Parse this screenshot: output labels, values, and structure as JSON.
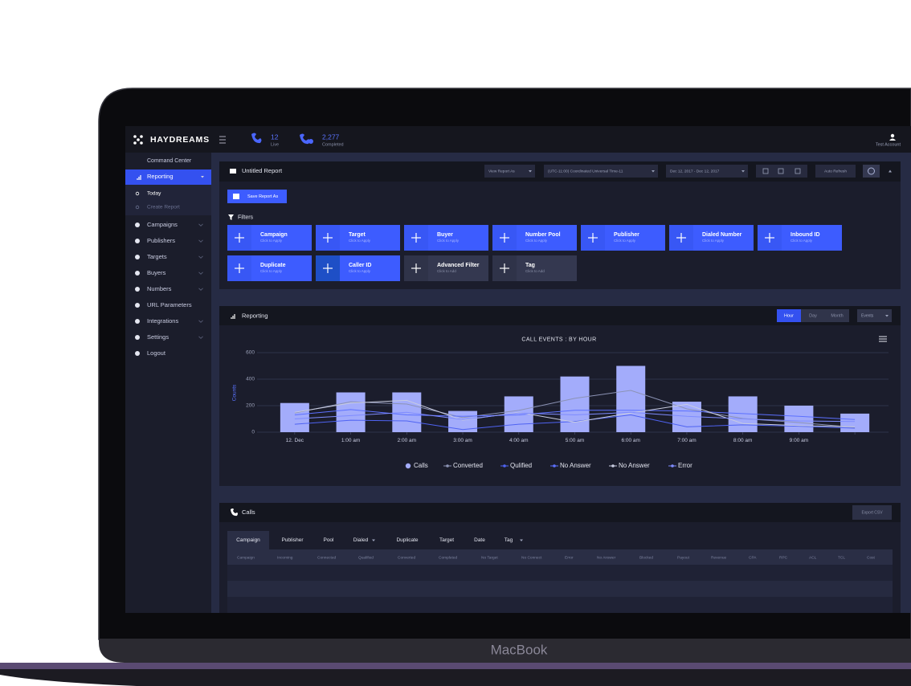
{
  "topbar": {
    "brand": "HAYDREAMS",
    "live": {
      "count": "12",
      "label": "Live"
    },
    "completed": {
      "count": "2,277",
      "label": "Completed"
    },
    "account": "Test Account"
  },
  "sidebar": {
    "heading": "Command Center",
    "active": "Reporting",
    "subitems": [
      "Today",
      "Create Report"
    ],
    "items": [
      "Campaigns",
      "Publishers",
      "Targets",
      "Buyers",
      "Numbers",
      "URL Parameters",
      "Integrations",
      "Settings",
      "Logout"
    ]
  },
  "report": {
    "title": "Untitled Report",
    "view_as": "View Report As",
    "timezone": "(UTC-11:00) Coordinated Universal Time-11",
    "date_range": "Dec 12, 2017 - Dec 12, 2017",
    "auto_refresh": "Auto Refresh",
    "save_button": "Save Report As",
    "filters_label": "Filters",
    "filters": [
      {
        "label": "Campaign",
        "hint": "Click to Apply"
      },
      {
        "label": "Target",
        "hint": "Click to Apply"
      },
      {
        "label": "Buyer",
        "hint": "Click to Apply"
      },
      {
        "label": "Number Pool",
        "hint": "Click to Apply"
      },
      {
        "label": "Publisher",
        "hint": "Click to Apply"
      },
      {
        "label": "Dialed Number",
        "hint": "Click to Apply"
      },
      {
        "label": "Inbound ID",
        "hint": "Click to Apply"
      },
      {
        "label": "Duplicate",
        "hint": "Click to Apply"
      },
      {
        "label": "Caller ID",
        "hint": "Click to Apply"
      },
      {
        "label": "Advanced Filter",
        "hint": "Click to Add"
      },
      {
        "label": "Tag",
        "hint": "Click to Add"
      }
    ]
  },
  "reporting": {
    "title": "Reporting",
    "periods": [
      "Hour",
      "Day",
      "Month"
    ],
    "events": "Events"
  },
  "chart_data": {
    "type": "bar",
    "title": "CALL EVENTS : BY HOUR",
    "y_label": "Counts",
    "categories": [
      "12. Dec",
      "1:00 am",
      "2:00 am",
      "3:00 am",
      "4:00 am",
      "5:00 am",
      "6:00 am",
      "7:00 am",
      "8:00 am",
      "9:00 am",
      null
    ],
    "ylim": [
      0,
      600
    ],
    "yticks": [
      0,
      200,
      400,
      600
    ],
    "grid": true,
    "legend": "bottom",
    "series": [
      {
        "name": "Calls",
        "type": "bar",
        "color": "#a3acfb",
        "values": [
          220,
          300,
          300,
          160,
          270,
          420,
          500,
          230,
          270,
          200,
          140
        ]
      },
      {
        "name": "Converted",
        "type": "line",
        "color": "#8c93b5",
        "values": [
          145,
          230,
          212,
          110,
          164,
          255,
          315,
          176,
          103,
          73,
          36
        ]
      },
      {
        "name": "Qulified",
        "type": "line",
        "color": "#4f63f2",
        "values": [
          60,
          90,
          85,
          20,
          60,
          80,
          130,
          40,
          55,
          45,
          30
        ]
      },
      {
        "name": "No Answer",
        "type": "line",
        "color": "#5c70ff",
        "values": [
          130,
          170,
          130,
          120,
          130,
          165,
          165,
          160,
          140,
          120,
          95
        ]
      },
      {
        "name": "No Answer",
        "type": "line",
        "color": "#c8cce0",
        "values": [
          150,
          220,
          240,
          90,
          150,
          75,
          145,
          210,
          65,
          50,
          40
        ]
      },
      {
        "name": "Error",
        "type": "line",
        "color": "#7f8cff",
        "values": [
          100,
          125,
          150,
          95,
          145,
          130,
          150,
          120,
          100,
          85,
          80
        ]
      }
    ]
  },
  "calls": {
    "title": "Calls",
    "export": "Export CSV",
    "tabs": [
      "Campaign",
      "Publisher",
      "Pool",
      "Dialed",
      "Duplicate",
      "Target",
      "Date",
      "Tag"
    ],
    "columns": [
      "Campaign",
      "Incoming",
      "Connected",
      "Qualified",
      "Converted",
      "Completed",
      "No Target",
      "No Connect",
      "Error",
      "No Answer",
      "Blocked",
      "Payout",
      "Revenue",
      "CPA",
      "RPC",
      "ACL",
      "TCL",
      "Cost"
    ]
  },
  "device": {
    "label": "MacBook"
  }
}
